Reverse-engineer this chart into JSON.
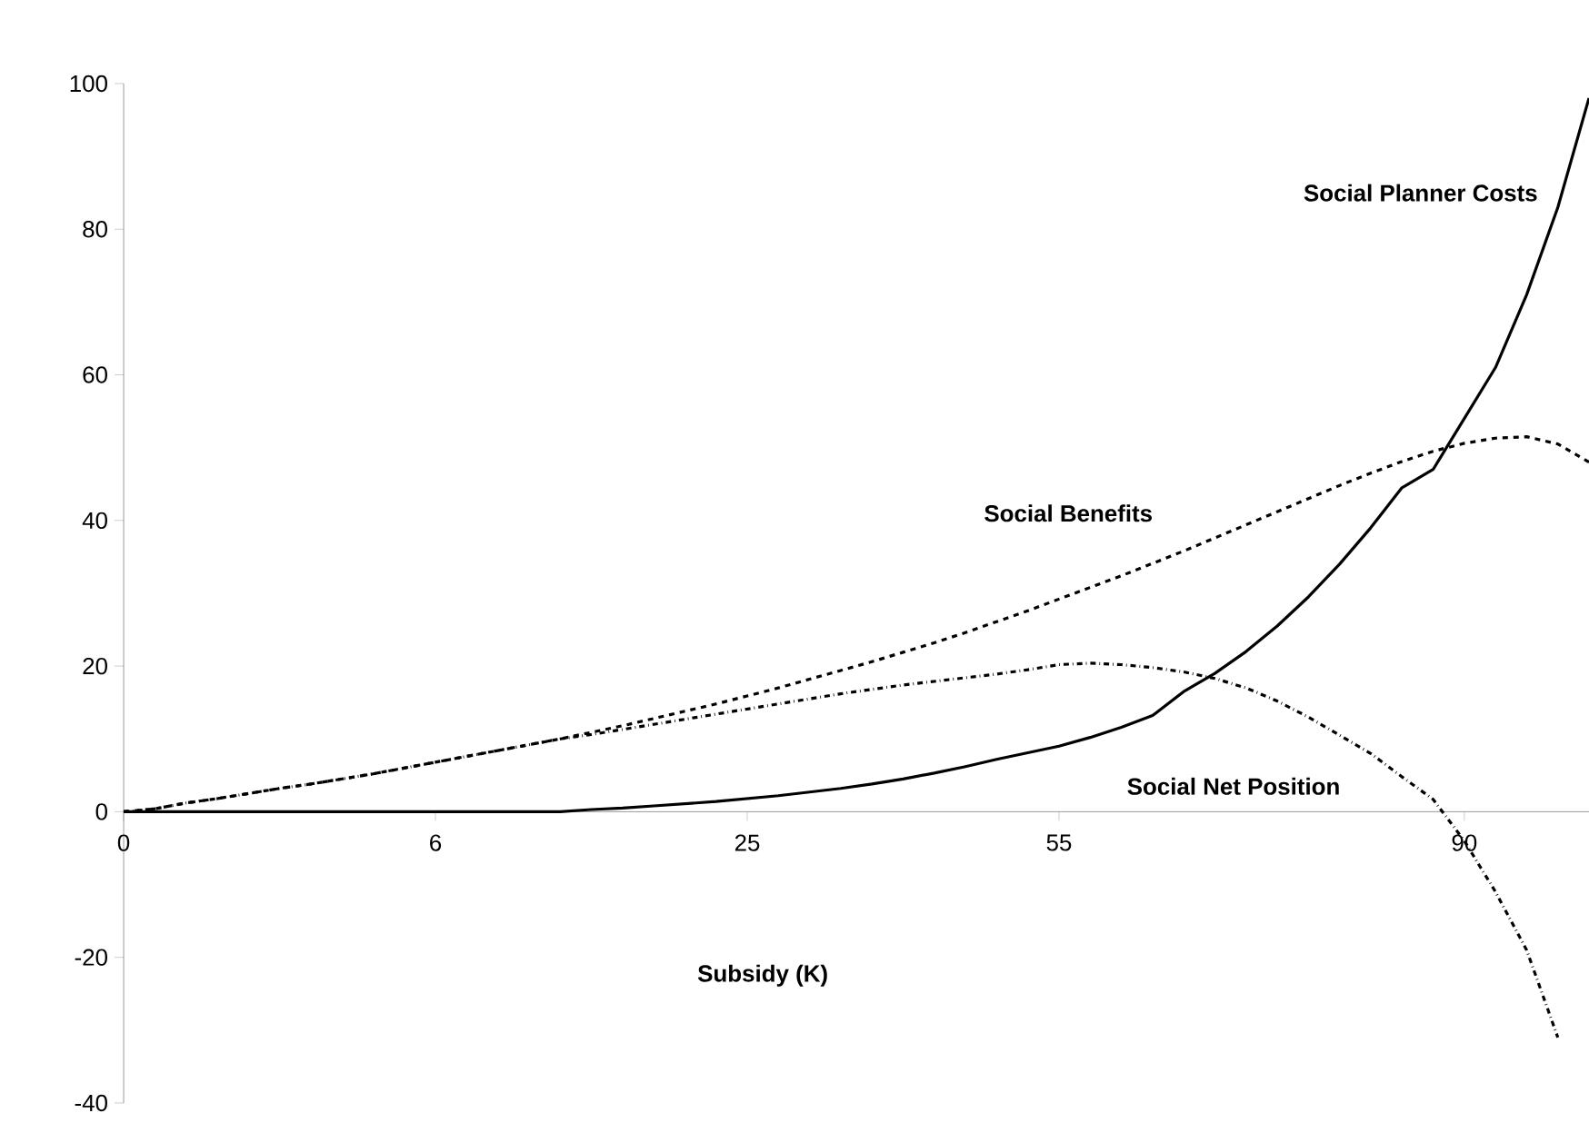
{
  "chart_data": {
    "type": "line",
    "xlabel": "Subsidy (K)",
    "categories": [
      "0",
      null,
      null,
      null,
      null,
      null,
      null,
      null,
      null,
      null,
      "6",
      null,
      null,
      null,
      null,
      null,
      null,
      null,
      null,
      null,
      "25",
      null,
      null,
      null,
      null,
      null,
      null,
      null,
      null,
      null,
      "55",
      null,
      null,
      null,
      null,
      null,
      null,
      null,
      null,
      null,
      null,
      null,
      null,
      "90",
      null,
      null,
      null,
      null
    ],
    "series": [
      {
        "name": "Social Planner Costs",
        "color": "#000000",
        "line_style": "solid",
        "values": [
          0,
          0,
          0,
          0,
          0,
          0,
          0,
          0,
          0,
          0,
          0,
          0,
          0,
          0,
          0,
          0.3,
          0.5,
          0.8,
          1.1,
          1.4,
          1.8,
          2.2,
          2.7,
          3.2,
          3.8,
          4.5,
          5.3,
          6.2,
          7.2,
          8.1,
          9,
          10.2,
          11.6,
          13.2,
          16.5,
          19,
          22,
          25.5,
          29.5,
          34,
          39,
          44.5,
          47,
          54,
          61,
          71,
          83,
          98
        ]
      },
      {
        "name": "Social Benefits",
        "color": "#000000",
        "line_style": "dashed",
        "values": [
          0,
          0.4,
          1.2,
          1.8,
          2.5,
          3.2,
          3.8,
          4.5,
          5.2,
          6,
          6.8,
          7.6,
          8.4,
          9.2,
          10,
          10.9,
          11.8,
          12.8,
          13.8,
          14.8,
          15.9,
          17,
          18.2,
          19.4,
          20.6,
          21.9,
          23.2,
          24.6,
          26.1,
          27.6,
          29.2,
          30.8,
          32.4,
          34.1,
          35.8,
          37.6,
          39.4,
          41.2,
          43,
          44.8,
          46.5,
          48.1,
          49.5,
          50.6,
          51.3,
          51.5,
          50.5,
          48
        ]
      },
      {
        "name": "Social Net Position",
        "color": "#000000",
        "line_style": "dashdot",
        "values": [
          0,
          0.4,
          1.2,
          1.8,
          2.5,
          3.2,
          3.8,
          4.5,
          5.2,
          6,
          6.8,
          7.6,
          8.4,
          9.2,
          10,
          10.6,
          11.3,
          12,
          12.7,
          13.4,
          14.1,
          14.8,
          15.5,
          16.2,
          16.8,
          17.4,
          17.9,
          18.4,
          18.9,
          19.5,
          20.2,
          20.4,
          20.2,
          19.8,
          19.2,
          18.3,
          17,
          15.2,
          13,
          10.5,
          8,
          4.8,
          1.7,
          -4,
          -11,
          -19,
          -31,
          null
        ]
      }
    ],
    "ylim": [
      -40,
      100
    ],
    "yticks": [
      -40,
      -20,
      0,
      20,
      40,
      60,
      80,
      100
    ],
    "marker": "none",
    "legend": false,
    "grid": false
  }
}
